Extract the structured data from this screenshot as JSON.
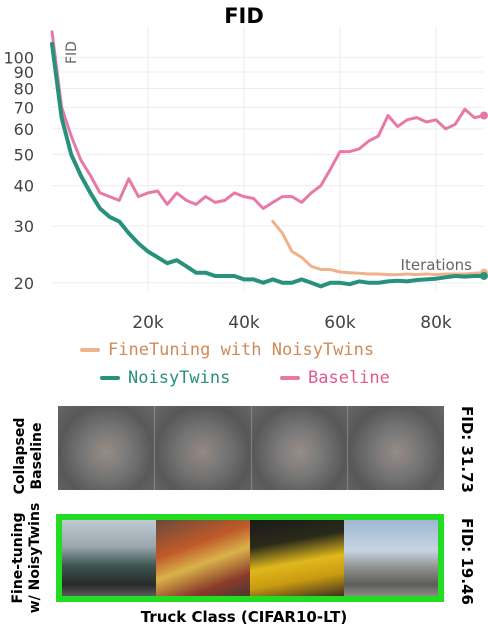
{
  "title": "FID",
  "chart_data": {
    "type": "line",
    "title": "FID",
    "ylabel": "FID",
    "xlabel": "Iterations",
    "y_scale": "log",
    "xlim": [
      0,
      90000
    ],
    "ylim": [
      19,
      125
    ],
    "x_ticks": [
      20000,
      40000,
      60000,
      80000
    ],
    "x_tick_labels": [
      "20k",
      "40k",
      "60k",
      "80k"
    ],
    "y_ticks": [
      20,
      30,
      40,
      50,
      60,
      70,
      80,
      90,
      100
    ],
    "y_tick_labels": [
      "20",
      "30",
      "40",
      "50",
      "60",
      "70",
      "80",
      "90",
      "100"
    ],
    "legend_position": "below",
    "series": [
      {
        "name": "Baseline",
        "color": "#e879a6",
        "x": [
          0,
          2000,
          4000,
          6000,
          8000,
          10000,
          12000,
          14000,
          16000,
          18000,
          20000,
          22000,
          24000,
          26000,
          28000,
          30000,
          32000,
          34000,
          36000,
          38000,
          40000,
          42000,
          44000,
          46000,
          48000,
          50000,
          52000,
          54000,
          56000,
          58000,
          60000,
          62000,
          64000,
          66000,
          68000,
          70000,
          72000,
          74000,
          76000,
          78000,
          80000,
          82000,
          84000,
          86000,
          88000,
          90000
        ],
        "y": [
          120,
          70,
          57,
          48,
          43,
          38,
          37,
          36,
          42,
          37,
          38,
          38.5,
          35,
          38,
          36,
          35,
          37,
          35.5,
          36,
          38,
          37,
          36.5,
          34,
          35.5,
          37,
          37,
          35.5,
          38,
          40,
          45,
          51,
          51,
          52,
          55,
          57,
          66,
          61,
          64,
          65,
          63,
          64,
          60,
          62,
          69,
          65,
          66
        ]
      },
      {
        "name": "NoisyTwins",
        "color": "#27917c",
        "x": [
          0,
          2000,
          4000,
          6000,
          8000,
          10000,
          12000,
          14000,
          16000,
          18000,
          20000,
          22000,
          24000,
          26000,
          28000,
          30000,
          32000,
          34000,
          36000,
          38000,
          40000,
          42000,
          44000,
          46000,
          48000,
          50000,
          52000,
          54000,
          56000,
          58000,
          60000,
          62000,
          64000,
          66000,
          68000,
          70000,
          72000,
          74000,
          76000,
          78000,
          80000,
          82000,
          84000,
          86000,
          88000,
          90000
        ],
        "y": [
          110,
          65,
          50,
          43,
          38,
          34,
          32,
          31,
          28.5,
          26.5,
          25,
          24,
          23,
          23.5,
          22.5,
          21.5,
          21.5,
          21,
          21,
          21,
          20.5,
          20.5,
          20,
          20.5,
          20,
          20,
          20.5,
          20,
          19.5,
          20,
          20,
          19.8,
          20.2,
          20,
          20,
          20.2,
          20.3,
          20.2,
          20.4,
          20.5,
          20.6,
          20.8,
          21,
          20.9,
          21,
          21
        ]
      },
      {
        "name": "FineTuning with NoisyTwins",
        "color": "#f0b28a",
        "x": [
          46000,
          48000,
          50000,
          52000,
          54000,
          56000,
          58000,
          60000,
          62000,
          64000,
          66000,
          68000,
          70000,
          72000,
          74000,
          76000,
          78000,
          80000,
          82000,
          84000,
          86000,
          88000,
          90000
        ],
        "y": [
          31,
          28.5,
          25,
          24,
          22.5,
          22,
          22,
          21.6,
          21.5,
          21.4,
          21.3,
          21.3,
          21.2,
          21.2,
          21.3,
          21.2,
          21.3,
          21.2,
          21.3,
          21.3,
          21.3,
          21.4,
          21.5
        ]
      }
    ]
  },
  "legend": {
    "finetuning": "FineTuning with NoisyTwins",
    "noisytwins": "NoisyTwins",
    "baseline": "Baseline"
  },
  "rows": {
    "collapsed_label": "Collapsed\nBaseline",
    "collapsed_fid": "FID: 31.73",
    "finetune_label": "Fine-tuning\nw/ NoisyTwins",
    "finetune_fid": "FID: 19.46"
  },
  "caption": "Truck Class (CIFAR10-LT)",
  "colors": {
    "highlight_border": "#22dd22"
  }
}
